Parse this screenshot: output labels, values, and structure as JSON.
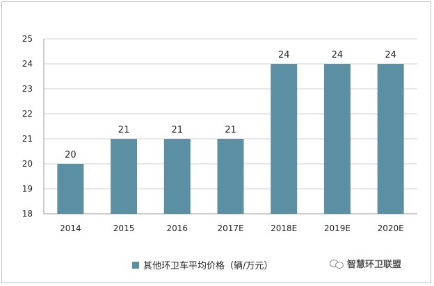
{
  "chart_data": {
    "type": "bar",
    "categories": [
      "2014",
      "2015",
      "2016",
      "2017E",
      "2018E",
      "2019E",
      "2020E"
    ],
    "values": [
      20,
      21,
      21,
      21,
      24,
      24,
      24
    ],
    "data_labels": [
      "20",
      "21",
      "21",
      "21",
      "24",
      "24",
      "24"
    ],
    "ylim": [
      18,
      25
    ],
    "yticks": [
      "18",
      "19",
      "20",
      "21",
      "22",
      "23",
      "24",
      "25"
    ],
    "grid": "horizontal",
    "legend_position": "bottom",
    "bar_color": "#5b8fa3"
  },
  "legend": {
    "label": "其他环卫车平均价格（辆/万元）",
    "color": "#5b8fa3"
  },
  "watermark": {
    "text": "智慧环卫联盟",
    "icon": "wechat-icon"
  }
}
